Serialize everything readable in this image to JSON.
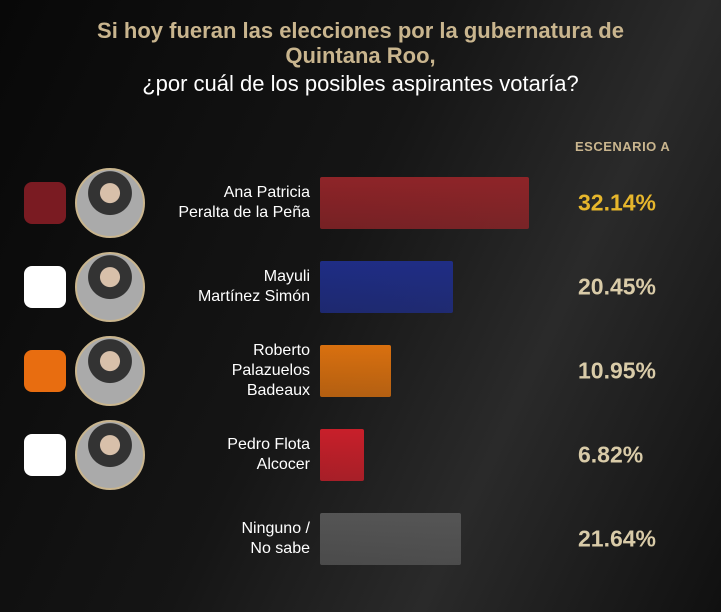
{
  "chart_data": {
    "type": "bar",
    "orientation": "horizontal",
    "title": "Si hoy fueran las elecciones por la gubernatura de Quintana Roo,",
    "subtitle": "¿por cuál de los posibles aspirantes votaría?",
    "categories": [
      "Ana Patricia\nPeralta de la Peña",
      "Mayuli\nMartínez Simón",
      "Roberto\nPalazuelos\nBadeaux",
      "Pedro Flota\nAlcocer",
      "Ninguno /\nNo sabe"
    ],
    "series": [
      {
        "name": "ESCENARIO A",
        "values": [
          32.14,
          20.45,
          10.95,
          6.82,
          21.64
        ],
        "value_labels": [
          "32.14%",
          "20.45%",
          "10.95%",
          "6.82%",
          "21.64%"
        ],
        "colors": [
          "#8e2428",
          "#1f2d85",
          "#d9700f",
          "#c81f2a",
          "#555555"
        ],
        "label_colors": [
          "#e6b62c",
          "#d9cba8",
          "#d9cba8",
          "#d9cba8",
          "#d9cba8"
        ]
      }
    ]
  }
}
